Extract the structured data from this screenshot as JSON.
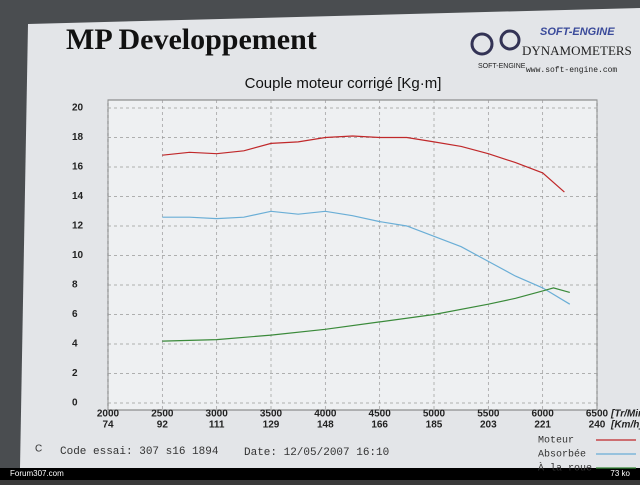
{
  "header": {
    "title": "MP Developpement",
    "logo_brand": "SOFT-ENGINE",
    "logo_subtitle": "DYNAMOMETERS",
    "logo_small": "SOFT-ENGINE",
    "website": "www.soft-engine.com"
  },
  "chart_data": {
    "type": "line",
    "title": "Couple moteur corrigé [Kg·m]",
    "xlim": [
      2000,
      6500
    ],
    "xticks": [
      2000,
      2500,
      3000,
      3500,
      4000,
      4500,
      5000,
      5500,
      6000,
      6500
    ],
    "x2ticks": [
      74,
      92,
      111,
      129,
      148,
      166,
      185,
      203,
      221,
      240
    ],
    "x_unit": "[Tr/Min",
    "x2_unit": "[Km/h]",
    "ylim": [
      0,
      20
    ],
    "yticks": [
      0,
      2,
      4,
      6,
      8,
      10,
      12,
      14,
      16,
      18,
      20
    ],
    "grid": true,
    "legend": "bottom-right",
    "series": [
      {
        "name": "Moteur",
        "color": "#c0282a",
        "x": [
          2500,
          2750,
          3000,
          3250,
          3500,
          3750,
          4000,
          4250,
          4500,
          4750,
          5000,
          5250,
          5500,
          5750,
          6000,
          6200
        ],
        "values": [
          16.8,
          17.0,
          16.9,
          17.1,
          17.6,
          17.7,
          18.0,
          18.1,
          18.0,
          18.0,
          17.7,
          17.4,
          16.9,
          16.3,
          15.6,
          14.3
        ]
      },
      {
        "name": "Absorbée",
        "color": "#6aaed6",
        "x": [
          2500,
          2750,
          3000,
          3250,
          3500,
          3750,
          4000,
          4250,
          4500,
          4750,
          5000,
          5250,
          5500,
          5750,
          6000,
          6250
        ],
        "values": [
          12.6,
          12.6,
          12.5,
          12.6,
          13.0,
          12.8,
          13.0,
          12.7,
          12.3,
          12.0,
          11.3,
          10.6,
          9.6,
          8.6,
          7.8,
          6.7
        ]
      },
      {
        "name": "À la roue",
        "color": "#3a8a3a",
        "x": [
          2500,
          3000,
          3500,
          4000,
          4500,
          5000,
          5500,
          5750,
          6000,
          6100,
          6250
        ],
        "values": [
          4.2,
          4.3,
          4.6,
          5.0,
          5.5,
          6.0,
          6.7,
          7.1,
          7.6,
          7.8,
          7.5
        ]
      }
    ]
  },
  "footer": {
    "prefix": "C",
    "test_code": "Code essai: 307 s16 1894",
    "date": "Date: 12/05/2007 16:10"
  },
  "watermark": {
    "site": "Forum307.com",
    "size": "73 ko"
  }
}
